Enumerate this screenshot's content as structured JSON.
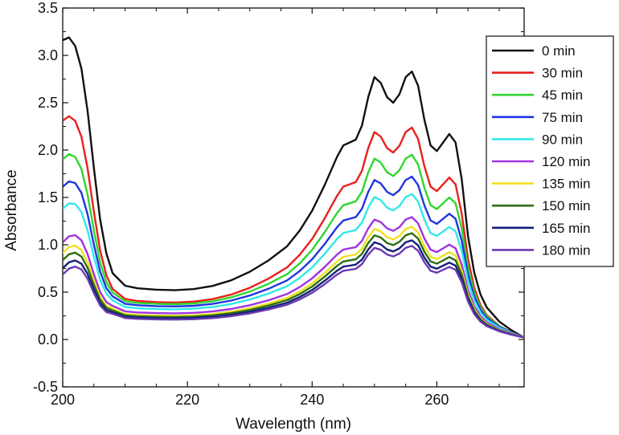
{
  "chart_data": {
    "type": "line",
    "title": "",
    "xlabel": "Wavelength (nm)",
    "ylabel": "Absorbance",
    "xlim": [
      200,
      274
    ],
    "ylim": [
      -0.5,
      3.5
    ],
    "x_ticks": [
      200,
      220,
      240,
      260
    ],
    "y_ticks": [
      -0.5,
      0.0,
      0.5,
      1.0,
      1.5,
      2.0,
      2.5,
      3.0,
      3.5
    ],
    "y_tick_labels": [
      "-0.5",
      "0.0",
      "0.5",
      "1.0",
      "1.5",
      "2.0",
      "2.5",
      "3.0",
      "3.5"
    ],
    "x_tick_labels": [
      "200",
      "220",
      "240",
      "260"
    ],
    "legend_position": "top-right",
    "grid": false,
    "base_profile": {
      "x": [
        200,
        201,
        202,
        203,
        204,
        205,
        206,
        207,
        208,
        210,
        212,
        215,
        218,
        221,
        224,
        227,
        230,
        233,
        236,
        238,
        240,
        242,
        244,
        245,
        246,
        247,
        248,
        249,
        250,
        251,
        252,
        253,
        254,
        255,
        256,
        257,
        258,
        259,
        260,
        261,
        262,
        263,
        264,
        265,
        266,
        267,
        268,
        270,
        272,
        274
      ],
      "shape": [
        0.93,
        0.94,
        0.91,
        0.83,
        0.68,
        0.48,
        0.3,
        0.18,
        0.11,
        0.066,
        0.057,
        0.052,
        0.05,
        0.054,
        0.065,
        0.085,
        0.115,
        0.155,
        0.205,
        0.26,
        0.33,
        0.42,
        0.52,
        0.56,
        0.57,
        0.58,
        0.63,
        0.73,
        0.8,
        0.78,
        0.73,
        0.71,
        0.74,
        0.8,
        0.82,
        0.77,
        0.65,
        0.56,
        0.54,
        0.57,
        0.6,
        0.57,
        0.44,
        0.28,
        0.17,
        0.1,
        0.06,
        0.025,
        0.01,
        0.0
      ]
    },
    "series": [
      {
        "name": "0 min",
        "color": "#111111",
        "scale": 3.0,
        "offset": 0.37,
        "uv_offset": 0.0
      },
      {
        "name": "30 min",
        "color": "#e8201c",
        "scale": 2.4,
        "offset": 0.27,
        "uv_offset": 0.35
      },
      {
        "name": "45 min",
        "color": "#2fd62f",
        "scale": 2.05,
        "offset": 0.27,
        "uv_offset": 0.5
      },
      {
        "name": "75 min",
        "color": "#2035e0",
        "scale": 1.78,
        "offset": 0.26,
        "uv_offset": 0.55
      },
      {
        "name": "90 min",
        "color": "#33e8e8",
        "scale": 1.58,
        "offset": 0.24,
        "uv_offset": 0.6
      },
      {
        "name": "120 min",
        "color": "#a033e0",
        "scale": 1.32,
        "offset": 0.21,
        "uv_offset": 0.75
      },
      {
        "name": "135 min",
        "color": "#f0e020",
        "scale": 1.22,
        "offset": 0.19,
        "uv_offset": 0.75
      },
      {
        "name": "150 min",
        "color": "#2e6e10",
        "scale": 1.15,
        "offset": 0.18,
        "uv_offset": 0.75
      },
      {
        "name": "165 min",
        "color": "#15207a",
        "scale": 1.07,
        "offset": 0.17,
        "uv_offset": 0.75
      },
      {
        "name": "180 min",
        "color": "#6a3ab0",
        "scale": 1.01,
        "offset": 0.16,
        "uv_offset": 0.75
      }
    ]
  }
}
